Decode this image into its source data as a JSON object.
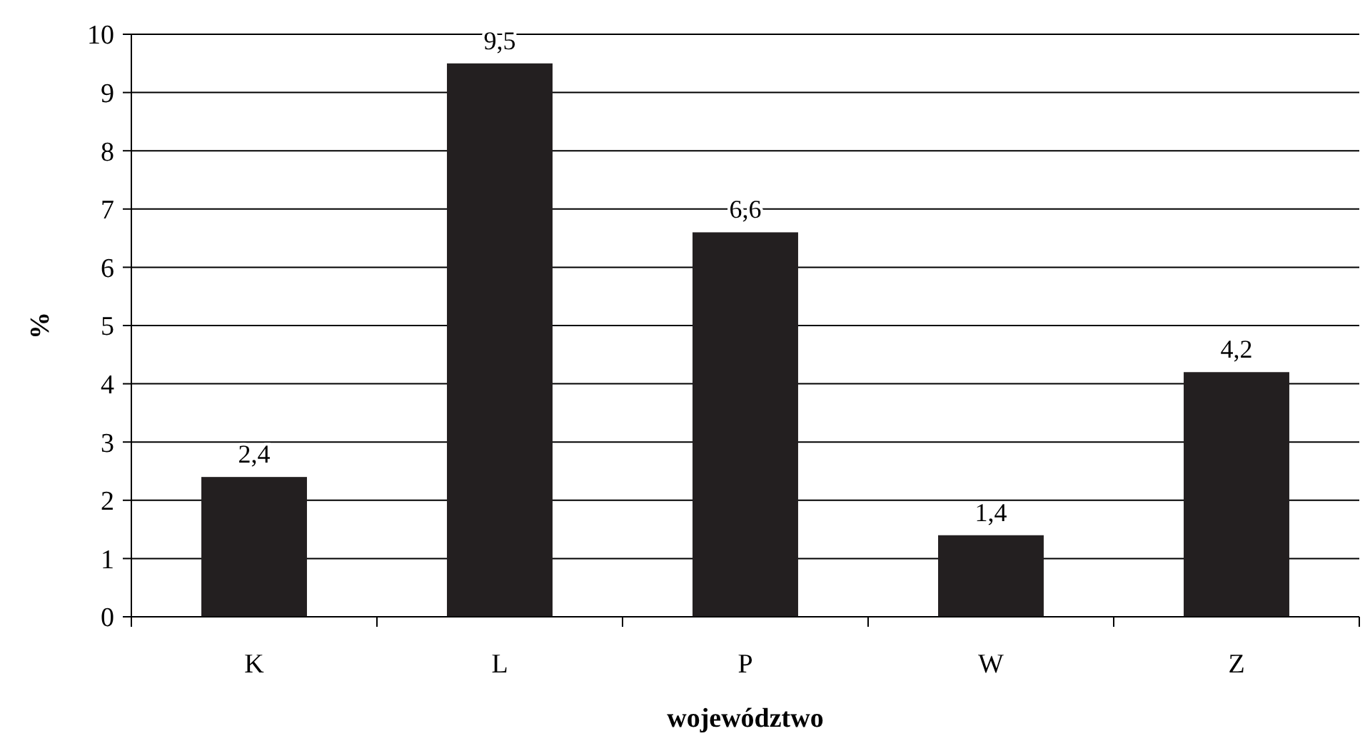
{
  "chart_data": {
    "type": "bar",
    "xlabel": "województwo",
    "ylabel": "%",
    "categories": [
      "K",
      "L",
      "P",
      "W",
      "Z"
    ],
    "values": [
      2.4,
      9.5,
      6.6,
      1.4,
      4.2
    ],
    "value_labels": [
      "2,4",
      "9,5",
      "6,6",
      "1,4",
      "4,2"
    ],
    "color": "#231f20",
    "ylim": [
      0,
      10
    ],
    "yticks": [
      0,
      1,
      2,
      3,
      4,
      5,
      6,
      7,
      8,
      9,
      10
    ],
    "grid": "y"
  }
}
